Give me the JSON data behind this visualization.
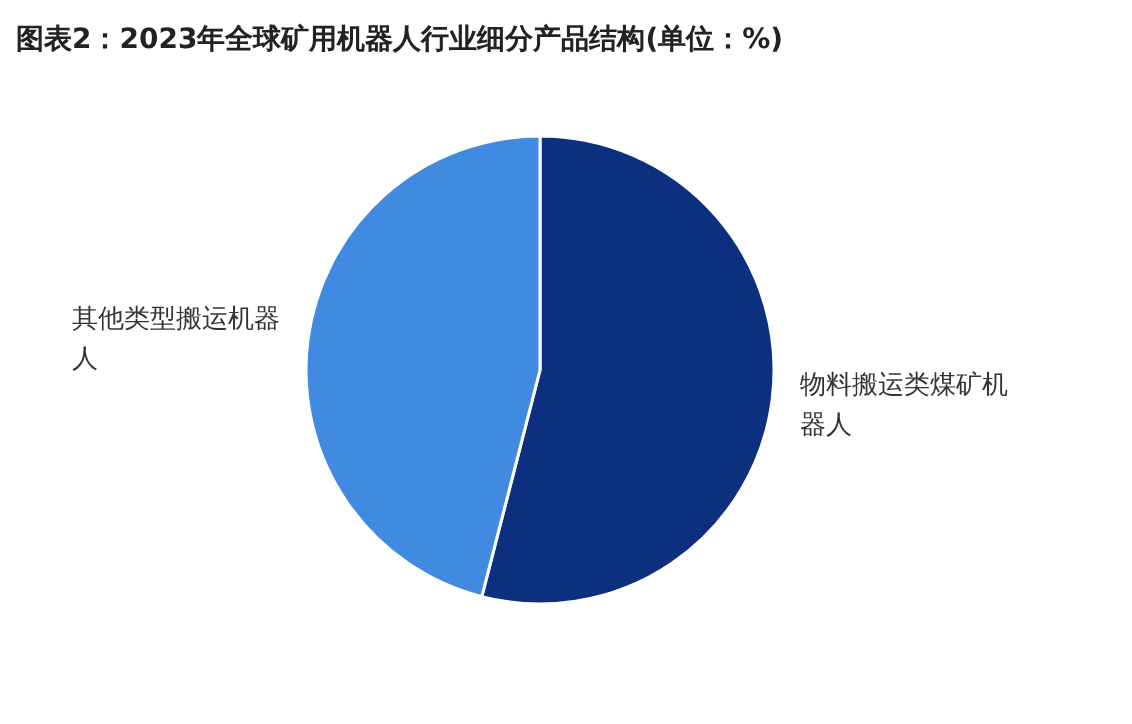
{
  "chart_data": {
    "type": "pie",
    "title": "图表2：2023年全球矿用机器人行业细分产品结构(单位：%)",
    "categories": [
      "物料搬运类煤矿机器人",
      "其他类型搬运机器人"
    ],
    "values": [
      54,
      46
    ],
    "colors": [
      "#0c2f7f",
      "#418ae2"
    ]
  }
}
